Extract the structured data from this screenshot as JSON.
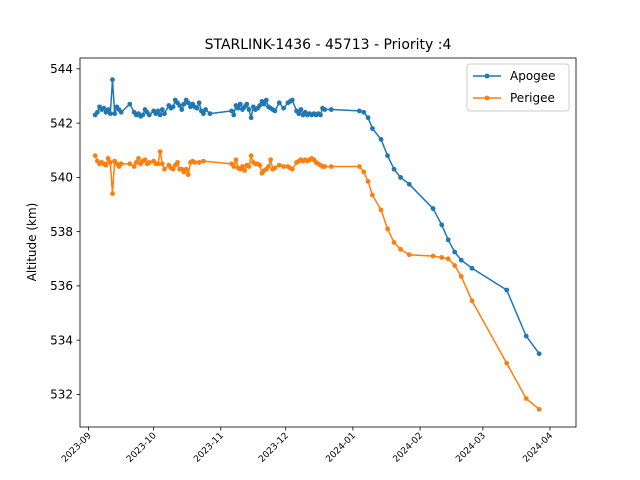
{
  "chart_data": {
    "type": "line",
    "title": "STARLINK-1436 - 45713 - Priority :4",
    "xlabel": "",
    "ylabel": "Altitude (km)",
    "x_type": "date",
    "xlim": [
      "2023-08-28",
      "2024-04-13"
    ],
    "ylim": [
      530.8,
      544.4
    ],
    "yticks": [
      532,
      534,
      536,
      538,
      540,
      542,
      544
    ],
    "xticks": [
      "2023-09",
      "2023-10",
      "2023-11",
      "2023-12",
      "2024-01",
      "2024-02",
      "2024-03",
      "2024-04"
    ],
    "grid": false,
    "legend_position": "upper right",
    "series": [
      {
        "name": "Apogee",
        "color": "#1f77b4",
        "points": [
          [
            "2023-09-04",
            542.3
          ],
          [
            "2023-09-05",
            542.4
          ],
          [
            "2023-09-06",
            542.6
          ],
          [
            "2023-09-07",
            542.5
          ],
          [
            "2023-09-08",
            542.55
          ],
          [
            "2023-09-09",
            542.4
          ],
          [
            "2023-09-10",
            542.5
          ],
          [
            "2023-09-11",
            542.35
          ],
          [
            "2023-09-12",
            543.6
          ],
          [
            "2023-09-13",
            542.35
          ],
          [
            "2023-09-14",
            542.6
          ],
          [
            "2023-09-15",
            542.5
          ],
          [
            "2023-09-16",
            542.4
          ],
          [
            "2023-09-20",
            542.7
          ],
          [
            "2023-09-22",
            542.4
          ],
          [
            "2023-09-23",
            542.3
          ],
          [
            "2023-09-24",
            542.35
          ],
          [
            "2023-09-25",
            542.25
          ],
          [
            "2023-09-26",
            542.3
          ],
          [
            "2023-09-27",
            542.5
          ],
          [
            "2023-09-28",
            542.4
          ],
          [
            "2023-09-29",
            542.3
          ],
          [
            "2023-10-01",
            542.45
          ],
          [
            "2023-10-02",
            542.35
          ],
          [
            "2023-10-03",
            542.45
          ],
          [
            "2023-10-04",
            542.3
          ],
          [
            "2023-10-05",
            542.5
          ],
          [
            "2023-10-06",
            542.35
          ],
          [
            "2023-10-08",
            542.65
          ],
          [
            "2023-10-09",
            542.55
          ],
          [
            "2023-10-10",
            542.6
          ],
          [
            "2023-10-11",
            542.85
          ],
          [
            "2023-10-12",
            542.75
          ],
          [
            "2023-10-13",
            542.65
          ],
          [
            "2023-10-14",
            542.5
          ],
          [
            "2023-10-15",
            542.7
          ],
          [
            "2023-10-16",
            542.85
          ],
          [
            "2023-10-17",
            542.75
          ],
          [
            "2023-10-18",
            542.6
          ],
          [
            "2023-10-19",
            542.7
          ],
          [
            "2023-10-20",
            542.6
          ],
          [
            "2023-10-21",
            542.55
          ],
          [
            "2023-10-22",
            542.75
          ],
          [
            "2023-10-23",
            542.45
          ],
          [
            "2023-10-24",
            542.35
          ],
          [
            "2023-10-25",
            542.5
          ],
          [
            "2023-10-27",
            542.35
          ],
          [
            "2023-11-06",
            542.45
          ],
          [
            "2023-11-07",
            542.3
          ],
          [
            "2023-11-08",
            542.65
          ],
          [
            "2023-11-09",
            542.55
          ],
          [
            "2023-11-10",
            542.7
          ],
          [
            "2023-11-11",
            542.5
          ],
          [
            "2023-11-12",
            542.6
          ],
          [
            "2023-11-13",
            542.7
          ],
          [
            "2023-11-14",
            542.5
          ],
          [
            "2023-11-15",
            542.2
          ],
          [
            "2023-11-16",
            542.6
          ],
          [
            "2023-11-17",
            542.5
          ],
          [
            "2023-11-18",
            542.55
          ],
          [
            "2023-11-19",
            542.65
          ],
          [
            "2023-11-20",
            542.8
          ],
          [
            "2023-11-21",
            542.7
          ],
          [
            "2023-11-22",
            542.85
          ],
          [
            "2023-11-23",
            542.6
          ],
          [
            "2023-11-24",
            542.55
          ],
          [
            "2023-11-25",
            542.5
          ],
          [
            "2023-11-26",
            542.45
          ],
          [
            "2023-11-28",
            542.75
          ],
          [
            "2023-11-30",
            542.55
          ],
          [
            "2023-12-02",
            542.75
          ],
          [
            "2023-12-03",
            542.8
          ],
          [
            "2023-12-04",
            542.85
          ],
          [
            "2023-12-06",
            542.45
          ],
          [
            "2023-12-07",
            542.35
          ],
          [
            "2023-12-08",
            542.5
          ],
          [
            "2023-12-09",
            542.3
          ],
          [
            "2023-12-10",
            542.4
          ],
          [
            "2023-12-11",
            542.3
          ],
          [
            "2023-12-12",
            542.35
          ],
          [
            "2023-12-13",
            542.3
          ],
          [
            "2023-12-14",
            542.35
          ],
          [
            "2023-12-15",
            542.3
          ],
          [
            "2023-12-16",
            542.35
          ],
          [
            "2023-12-17",
            542.3
          ],
          [
            "2023-12-18",
            542.55
          ],
          [
            "2023-12-19",
            542.5
          ],
          [
            "2023-12-22",
            542.5
          ],
          [
            "2024-01-04",
            542.45
          ],
          [
            "2024-01-06",
            542.4
          ],
          [
            "2024-01-08",
            542.2
          ],
          [
            "2024-01-10",
            541.8
          ],
          [
            "2024-01-14",
            541.4
          ],
          [
            "2024-01-17",
            540.8
          ],
          [
            "2024-01-20",
            540.3
          ],
          [
            "2024-01-23",
            540.0
          ],
          [
            "2024-01-27",
            539.75
          ],
          [
            "2024-02-07",
            538.85
          ],
          [
            "2024-02-11",
            538.25
          ],
          [
            "2024-02-14",
            537.7
          ],
          [
            "2024-02-17",
            537.25
          ],
          [
            "2024-02-20",
            536.95
          ],
          [
            "2024-02-25",
            536.65
          ],
          [
            "2024-03-12",
            535.85
          ],
          [
            "2024-03-21",
            534.15
          ],
          [
            "2024-03-27",
            533.5
          ]
        ]
      },
      {
        "name": "Perigee",
        "color": "#ff7f0e",
        "points": [
          [
            "2023-09-04",
            540.8
          ],
          [
            "2023-09-05",
            540.6
          ],
          [
            "2023-09-06",
            540.5
          ],
          [
            "2023-09-07",
            540.55
          ],
          [
            "2023-09-08",
            540.5
          ],
          [
            "2023-09-09",
            540.45
          ],
          [
            "2023-09-10",
            540.7
          ],
          [
            "2023-09-11",
            540.55
          ],
          [
            "2023-09-12",
            539.4
          ],
          [
            "2023-09-13",
            540.6
          ],
          [
            "2023-09-14",
            540.5
          ],
          [
            "2023-09-15",
            540.4
          ],
          [
            "2023-09-16",
            540.5
          ],
          [
            "2023-09-20",
            540.5
          ],
          [
            "2023-09-22",
            540.4
          ],
          [
            "2023-09-23",
            540.55
          ],
          [
            "2023-09-24",
            540.7
          ],
          [
            "2023-09-25",
            540.5
          ],
          [
            "2023-09-26",
            540.6
          ],
          [
            "2023-09-27",
            540.65
          ],
          [
            "2023-09-28",
            540.5
          ],
          [
            "2023-09-29",
            540.55
          ],
          [
            "2023-10-01",
            540.6
          ],
          [
            "2023-10-02",
            540.5
          ],
          [
            "2023-10-03",
            540.5
          ],
          [
            "2023-10-04",
            540.95
          ],
          [
            "2023-10-05",
            540.5
          ],
          [
            "2023-10-06",
            540.3
          ],
          [
            "2023-10-08",
            540.45
          ],
          [
            "2023-10-09",
            540.35
          ],
          [
            "2023-10-10",
            540.3
          ],
          [
            "2023-10-11",
            540.45
          ],
          [
            "2023-10-12",
            540.55
          ],
          [
            "2023-10-13",
            540.3
          ],
          [
            "2023-10-14",
            540.3
          ],
          [
            "2023-10-15",
            540.2
          ],
          [
            "2023-10-16",
            540.3
          ],
          [
            "2023-10-17",
            540.1
          ],
          [
            "2023-10-18",
            540.55
          ],
          [
            "2023-10-19",
            540.6
          ],
          [
            "2023-10-20",
            540.55
          ],
          [
            "2023-10-22",
            540.55
          ],
          [
            "2023-10-24",
            540.6
          ],
          [
            "2023-11-06",
            540.5
          ],
          [
            "2023-11-07",
            540.4
          ],
          [
            "2023-11-08",
            540.65
          ],
          [
            "2023-11-09",
            540.35
          ],
          [
            "2023-11-10",
            540.3
          ],
          [
            "2023-11-11",
            540.4
          ],
          [
            "2023-11-12",
            540.25
          ],
          [
            "2023-11-13",
            540.45
          ],
          [
            "2023-11-14",
            540.4
          ],
          [
            "2023-11-15",
            540.8
          ],
          [
            "2023-11-16",
            540.55
          ],
          [
            "2023-11-17",
            540.5
          ],
          [
            "2023-11-18",
            540.5
          ],
          [
            "2023-11-19",
            540.45
          ],
          [
            "2023-11-20",
            540.15
          ],
          [
            "2023-11-21",
            540.25
          ],
          [
            "2023-11-22",
            540.3
          ],
          [
            "2023-11-23",
            540.4
          ],
          [
            "2023-11-24",
            540.65
          ],
          [
            "2023-11-25",
            540.3
          ],
          [
            "2023-11-26",
            540.35
          ],
          [
            "2023-11-28",
            540.45
          ],
          [
            "2023-11-30",
            540.4
          ],
          [
            "2023-12-02",
            540.4
          ],
          [
            "2023-12-03",
            540.35
          ],
          [
            "2023-12-04",
            540.3
          ],
          [
            "2023-12-06",
            540.55
          ],
          [
            "2023-12-07",
            540.6
          ],
          [
            "2023-12-08",
            540.65
          ],
          [
            "2023-12-09",
            540.6
          ],
          [
            "2023-12-10",
            540.65
          ],
          [
            "2023-12-11",
            540.6
          ],
          [
            "2023-12-12",
            540.65
          ],
          [
            "2023-12-13",
            540.7
          ],
          [
            "2023-12-14",
            540.65
          ],
          [
            "2023-12-15",
            540.55
          ],
          [
            "2023-12-16",
            540.5
          ],
          [
            "2023-12-17",
            540.45
          ],
          [
            "2023-12-18",
            540.4
          ],
          [
            "2023-12-19",
            540.4
          ],
          [
            "2023-12-22",
            540.4
          ],
          [
            "2024-01-04",
            540.4
          ],
          [
            "2024-01-06",
            540.2
          ],
          [
            "2024-01-08",
            539.85
          ],
          [
            "2024-01-10",
            539.35
          ],
          [
            "2024-01-14",
            538.8
          ],
          [
            "2024-01-17",
            538.1
          ],
          [
            "2024-01-20",
            537.6
          ],
          [
            "2024-01-23",
            537.35
          ],
          [
            "2024-01-27",
            537.15
          ],
          [
            "2024-02-07",
            537.1
          ],
          [
            "2024-02-11",
            537.05
          ],
          [
            "2024-02-14",
            537.0
          ],
          [
            "2024-02-17",
            536.75
          ],
          [
            "2024-02-20",
            536.35
          ],
          [
            "2024-02-25",
            535.45
          ],
          [
            "2024-03-12",
            533.15
          ],
          [
            "2024-03-21",
            531.85
          ],
          [
            "2024-03-27",
            531.45
          ]
        ]
      }
    ]
  }
}
